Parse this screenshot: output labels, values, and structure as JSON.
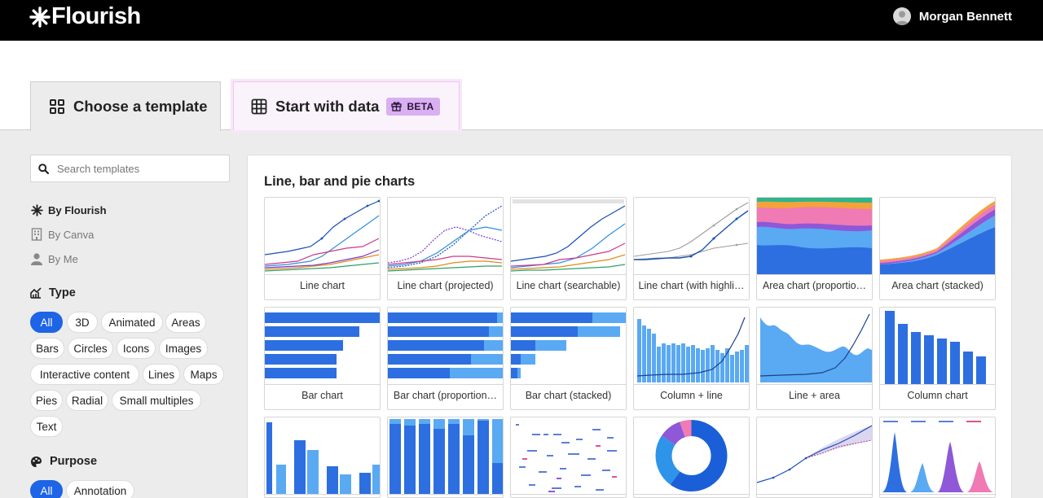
{
  "app": {
    "name": "Flourish"
  },
  "user": {
    "name": "Morgan Bennett"
  },
  "tabs": {
    "template": "Choose a template",
    "data": "Start with data",
    "beta": "BETA"
  },
  "search": {
    "placeholder": "Search templates"
  },
  "filters": {
    "by_flourish": "By Flourish",
    "by_canva": "By Canva",
    "by_me": "By Me"
  },
  "type": {
    "heading": "Type",
    "pills": [
      "All",
      "3D",
      "Animated",
      "Areas",
      "Bars",
      "Circles",
      "Icons",
      "Images",
      "Interactive content",
      "Lines",
      "Maps",
      "Pies",
      "Radial",
      "Small multiples",
      "Text"
    ]
  },
  "purpose": {
    "heading": "Purpose",
    "pills": [
      "All",
      "Annotation"
    ]
  },
  "section": {
    "title": "Line, bar and pie charts",
    "cards": [
      {
        "label": "Line chart",
        "thumb": "line-chart-icon"
      },
      {
        "label": "Line chart (projected)",
        "thumb": "line-chart-projected-icon"
      },
      {
        "label": "Line chart (searchable)",
        "thumb": "line-chart-searchable-icon"
      },
      {
        "label": "Line chart (with highli…",
        "thumb": "line-chart-highlight-icon"
      },
      {
        "label": "Area chart (proportio…",
        "thumb": "area-chart-proportional-icon"
      },
      {
        "label": "Area chart (stacked)",
        "thumb": "area-chart-stacked-icon"
      },
      {
        "label": "Bar chart",
        "thumb": "bar-chart-icon"
      },
      {
        "label": "Bar chart (proportion…",
        "thumb": "bar-chart-proportional-icon"
      },
      {
        "label": "Bar chart (stacked)",
        "thumb": "bar-chart-stacked-icon"
      },
      {
        "label": "Column + line",
        "thumb": "column-line-icon"
      },
      {
        "label": "Line + area",
        "thumb": "line-area-icon"
      },
      {
        "label": "Column chart",
        "thumb": "column-chart-icon"
      }
    ]
  },
  "colors": {
    "accent": "#1d64e6",
    "beta_bg": "#d9b0f2",
    "topbar": "#000000"
  }
}
